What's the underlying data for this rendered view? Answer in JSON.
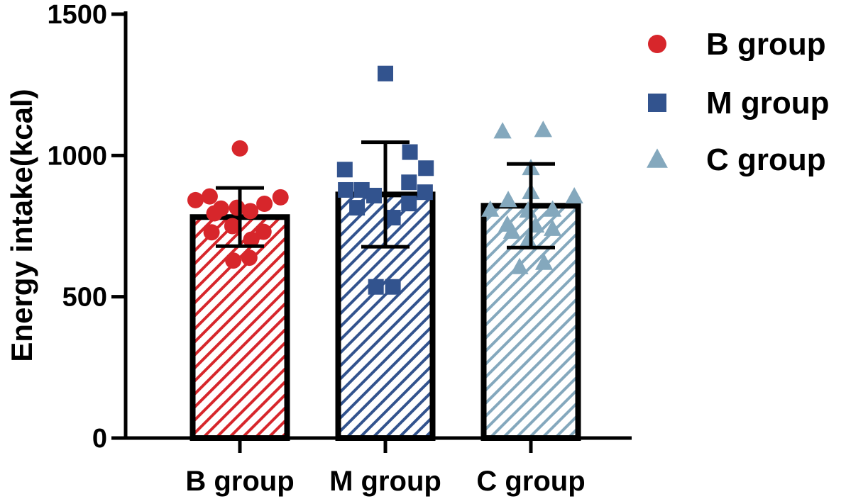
{
  "chart_data": {
    "type": "bar",
    "ylabel": "Energy intake(kcal)",
    "xlabel": "",
    "ylim": [
      0,
      1500
    ],
    "yticks": [
      0,
      500,
      1000,
      1500
    ],
    "categories": [
      "B group",
      "M group",
      "C group"
    ],
    "legend": {
      "placement": "right"
    },
    "grid": false,
    "series": [
      {
        "name": "B group",
        "category": "B group",
        "color": "#d7262b",
        "marker": "circle",
        "mean": 782,
        "sd": 103,
        "points": [
          {
            "offset": -0.47,
            "y": 842
          },
          {
            "offset": -0.32,
            "y": 855
          },
          {
            "offset": 0.0,
            "y": 1025
          },
          {
            "offset": 0.43,
            "y": 852
          },
          {
            "offset": 0.26,
            "y": 829
          },
          {
            "offset": -0.2,
            "y": 812
          },
          {
            "offset": -0.03,
            "y": 815
          },
          {
            "offset": 0.11,
            "y": 803
          },
          {
            "offset": -0.27,
            "y": 795
          },
          {
            "offset": -0.08,
            "y": 750
          },
          {
            "offset": 0.25,
            "y": 730
          },
          {
            "offset": -0.3,
            "y": 728
          },
          {
            "offset": 0.12,
            "y": 702
          },
          {
            "offset": -0.07,
            "y": 628
          },
          {
            "offset": 0.1,
            "y": 638
          }
        ]
      },
      {
        "name": "M group",
        "category": "M group",
        "color": "#32538e",
        "marker": "square",
        "mean": 862,
        "sd": 185,
        "points": [
          {
            "offset": 0.0,
            "y": 1290
          },
          {
            "offset": 0.26,
            "y": 1012
          },
          {
            "offset": -0.43,
            "y": 950
          },
          {
            "offset": 0.43,
            "y": 955
          },
          {
            "offset": 0.25,
            "y": 905
          },
          {
            "offset": -0.42,
            "y": 878
          },
          {
            "offset": -0.25,
            "y": 878
          },
          {
            "offset": -0.12,
            "y": 858
          },
          {
            "offset": 0.42,
            "y": 870
          },
          {
            "offset": -0.3,
            "y": 815
          },
          {
            "offset": 0.25,
            "y": 830
          },
          {
            "offset": 0.08,
            "y": 780
          },
          {
            "offset": -0.1,
            "y": 535
          },
          {
            "offset": 0.08,
            "y": 535
          }
        ]
      },
      {
        "name": "C group",
        "category": "C group",
        "color": "#84a8bd",
        "marker": "triangle",
        "mean": 822,
        "sd": 148,
        "points": [
          {
            "offset": -0.3,
            "y": 1085
          },
          {
            "offset": 0.13,
            "y": 1090
          },
          {
            "offset": 0.0,
            "y": 955
          },
          {
            "offset": 0.0,
            "y": 870
          },
          {
            "offset": -0.24,
            "y": 842
          },
          {
            "offset": 0.46,
            "y": 855
          },
          {
            "offset": -0.43,
            "y": 808
          },
          {
            "offset": -0.03,
            "y": 805
          },
          {
            "offset": 0.23,
            "y": 808
          },
          {
            "offset": -0.25,
            "y": 755
          },
          {
            "offset": 0.05,
            "y": 752
          },
          {
            "offset": 0.23,
            "y": 740
          },
          {
            "offset": -0.2,
            "y": 730
          },
          {
            "offset": -0.03,
            "y": 700
          },
          {
            "offset": -0.12,
            "y": 605
          },
          {
            "offset": 0.14,
            "y": 620
          }
        ]
      }
    ]
  }
}
